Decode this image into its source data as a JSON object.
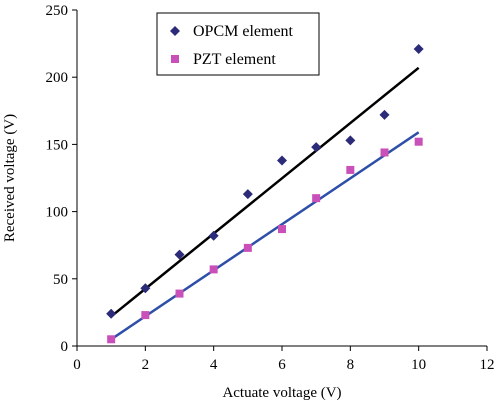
{
  "chart_data": {
    "type": "scatter",
    "xlabel": "Actuate voltage (V)",
    "ylabel": "Received voltage (V)",
    "xlim": [
      0,
      12
    ],
    "ylim": [
      0,
      250
    ],
    "xticks": [
      0,
      2,
      4,
      6,
      8,
      10,
      12
    ],
    "yticks": [
      0,
      50,
      100,
      150,
      200,
      250
    ],
    "xtick_labels": [
      "0",
      "2",
      "4",
      "6",
      "8",
      "10",
      "12"
    ],
    "ytick_labels": [
      "0",
      "50",
      "100",
      "150",
      "200",
      "250"
    ],
    "grid": false,
    "legend_position": "top-left",
    "series": [
      {
        "name": "OPCM element",
        "marker": "diamond",
        "color": "#2b2b7a",
        "x": [
          1,
          2,
          3,
          4,
          5,
          6,
          7,
          8,
          9,
          10
        ],
        "y": [
          24,
          43,
          68,
          82,
          113,
          138,
          148,
          153,
          172,
          221
        ],
        "trendline": {
          "color": "#000000",
          "x": [
            1,
            10
          ],
          "y": [
            22,
            207
          ]
        }
      },
      {
        "name": "PZT element",
        "marker": "square",
        "color": "#c850b8",
        "x": [
          1,
          2,
          3,
          4,
          5,
          6,
          7,
          8,
          9,
          10
        ],
        "y": [
          5,
          23,
          39,
          57,
          73,
          87,
          110,
          131,
          144,
          152
        ],
        "trendline": {
          "color": "#2e4fa8",
          "x": [
            1,
            10
          ],
          "y": [
            5,
            159
          ]
        }
      }
    ]
  }
}
